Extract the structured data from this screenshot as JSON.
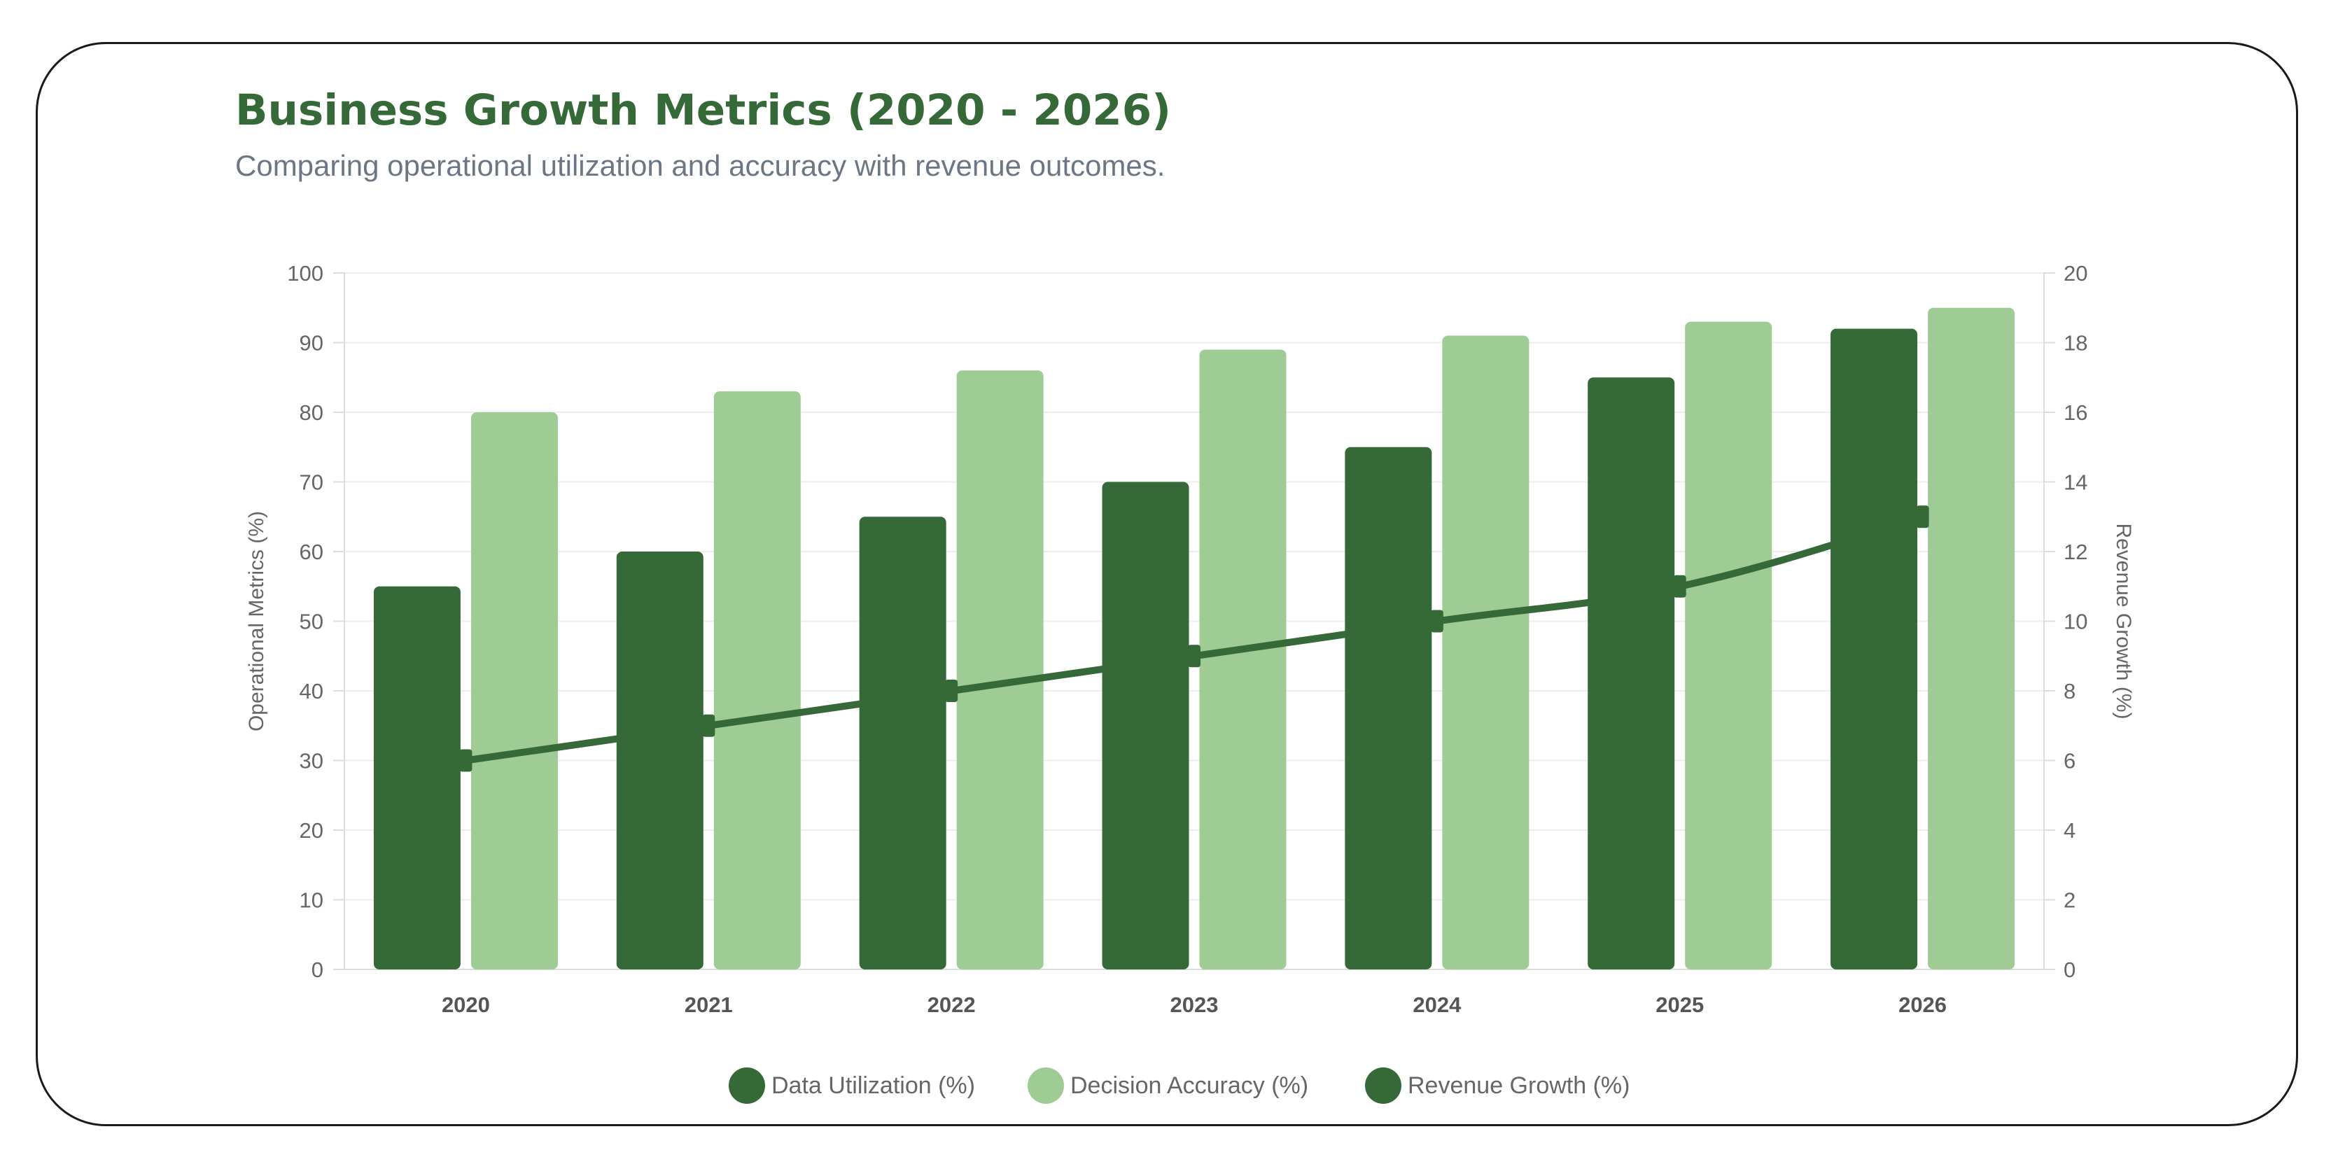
{
  "header": {
    "title": "Business Growth Metrics (2020 - 2026)",
    "subtitle": "Comparing operational utilization and accuracy with revenue outcomes."
  },
  "colors": {
    "dark_green": "#356937",
    "light_green": "#9fcb95",
    "line": "#356937",
    "grid": "#ededed",
    "axis": "#dddddd"
  },
  "chart_data": {
    "type": "bar",
    "categories": [
      "2020",
      "2021",
      "2022",
      "2023",
      "2024",
      "2025",
      "2026"
    ],
    "series": [
      {
        "name": "Data Utilization (%)",
        "type": "bar",
        "axis": "left",
        "color": "#356937",
        "values": [
          55,
          60,
          65,
          70,
          75,
          85,
          92
        ]
      },
      {
        "name": "Decision Accuracy (%)",
        "type": "bar",
        "axis": "left",
        "color": "#9fcb95",
        "values": [
          80,
          83,
          86,
          89,
          91,
          93,
          95
        ]
      },
      {
        "name": "Revenue Growth (%)",
        "type": "line",
        "axis": "right",
        "color": "#356937",
        "values": [
          6,
          7,
          8,
          9,
          10,
          11,
          13
        ]
      }
    ],
    "y_left": {
      "label": "Operational Metrics (%)",
      "min": 0,
      "max": 100,
      "step": 10
    },
    "y_right": {
      "label": "Revenue Growth (%)",
      "min": 0,
      "max": 20,
      "step": 2
    },
    "grid": true,
    "legend_position": "bottom"
  }
}
